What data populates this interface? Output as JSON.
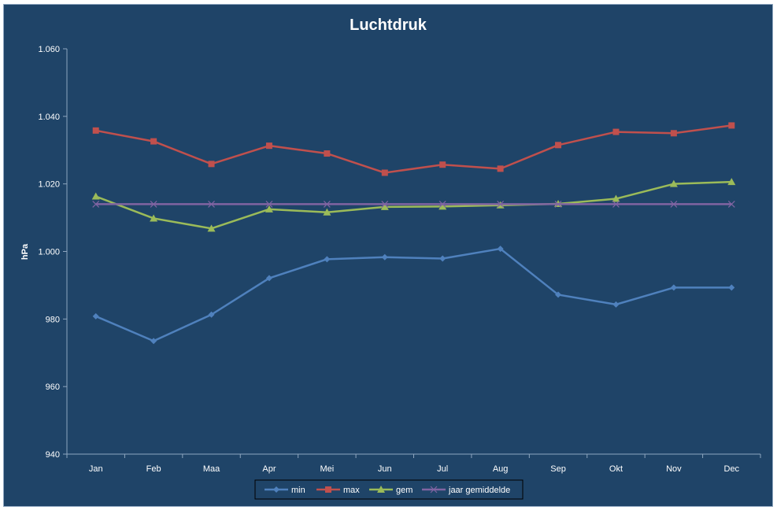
{
  "chart_data": {
    "type": "line",
    "title": "Luchtdruk",
    "ylabel": "hPa",
    "xlabel": "",
    "categories": [
      "Jan",
      "Feb",
      "Maa",
      "Apr",
      "Mei",
      "Jun",
      "Jul",
      "Aug",
      "Sep",
      "Okt",
      "Nov",
      "Dec"
    ],
    "ylim": [
      940,
      1060
    ],
    "yticks": [
      940,
      960,
      980,
      1000,
      1020,
      1040,
      1060
    ],
    "ytick_labels": [
      "940",
      "960",
      "980",
      "1.000",
      "1.020",
      "1.040",
      "1.060"
    ],
    "grid": false,
    "legend_position": "bottom",
    "series": [
      {
        "name": "min",
        "color": "#4f81bd",
        "marker": "diamond",
        "values": [
          980.8,
          973.5,
          981.3,
          992.1,
          997.7,
          998.3,
          997.9,
          1000.8,
          987.2,
          984.3,
          989.3,
          989.3
        ]
      },
      {
        "name": "max",
        "color": "#c0504d",
        "marker": "square",
        "values": [
          1035.8,
          1032.6,
          1025.9,
          1031.3,
          1029.0,
          1023.3,
          1025.7,
          1024.5,
          1031.5,
          1035.4,
          1035.0,
          1037.3
        ]
      },
      {
        "name": "gem",
        "color": "#9bbb59",
        "marker": "triangle",
        "values": [
          1016.3,
          1009.8,
          1006.8,
          1012.5,
          1011.6,
          1013.2,
          1013.3,
          1013.7,
          1014.1,
          1015.6,
          1020.0,
          1020.6
        ]
      },
      {
        "name": "jaar gemiddelde",
        "color": "#8064a2",
        "marker": "x",
        "values": [
          1014.0,
          1014.0,
          1014.0,
          1014.0,
          1014.0,
          1014.0,
          1014.0,
          1014.0,
          1014.0,
          1014.0,
          1014.0,
          1014.0
        ]
      }
    ]
  }
}
